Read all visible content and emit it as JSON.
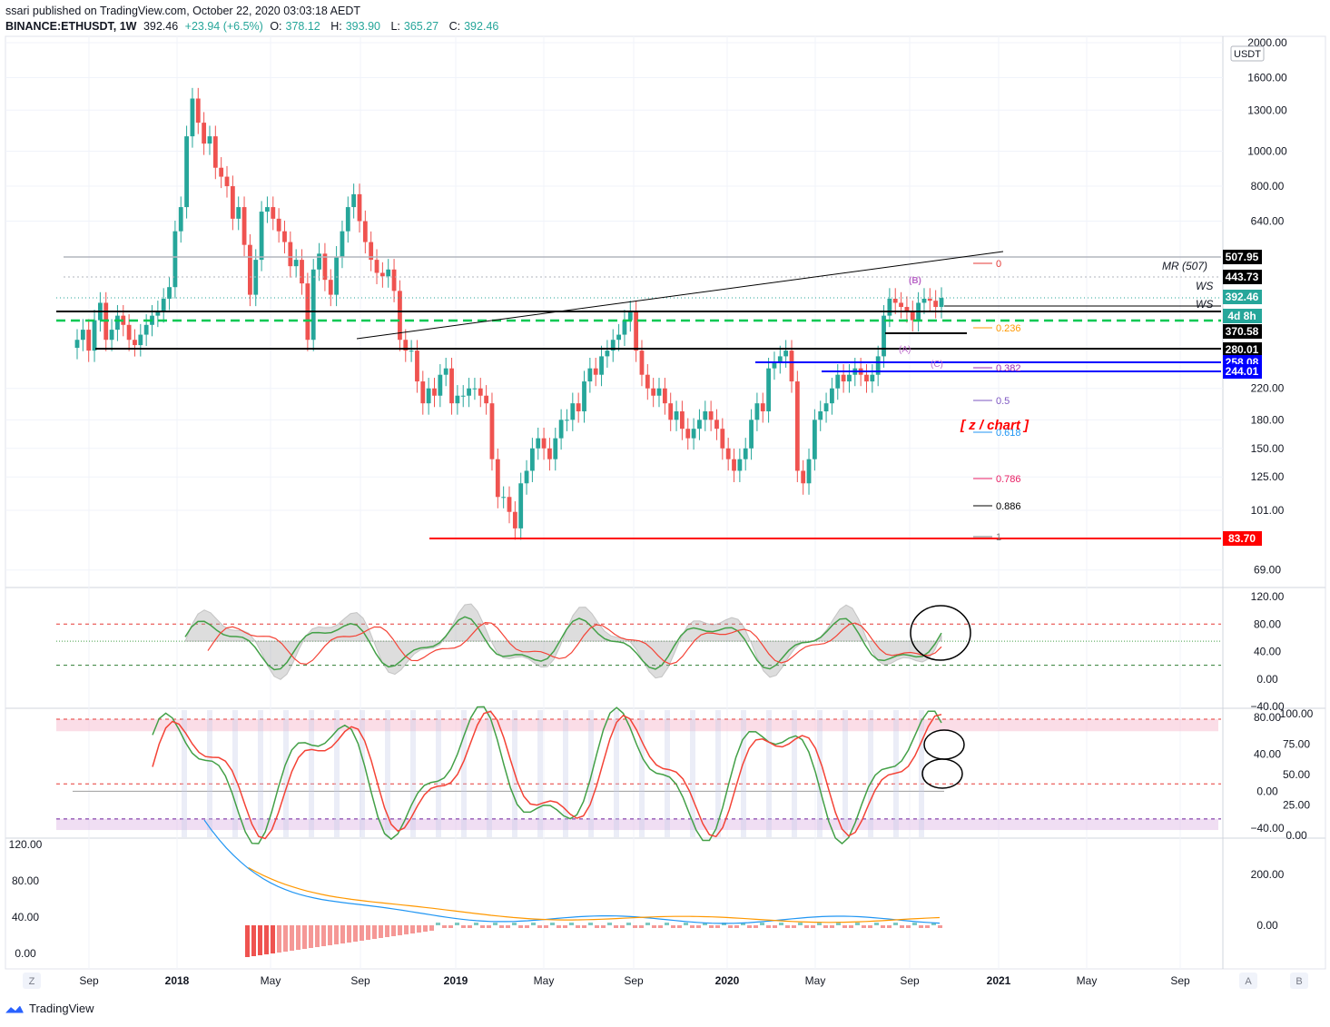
{
  "header": {
    "line1": "ssari published on TradingView.com, October 22, 2020 03:03:18 AEDT",
    "symbol": "BINANCE:ETHUSDT, 1W",
    "price": "392.46",
    "change": "+23.94 (+6.5%)",
    "o_label": "O:",
    "o": "378.12",
    "h_label": "H:",
    "h": "393.90",
    "l_label": "L:",
    "l": "365.27",
    "c_label": "C:",
    "c": "392.46"
  },
  "footer": {
    "brand": "TradingView"
  },
  "colors": {
    "up": "#26a69a",
    "down": "#ef5350",
    "red_line": "#ff0000",
    "blue_line": "#0000ff",
    "green_dash": "#00c853",
    "stoch_k": "#43a047",
    "stoch_d": "#f44336"
  },
  "chart_data": [
    {
      "type": "candlestick",
      "title": "",
      "currency_badge": "USDT",
      "scale": "log",
      "y_ticks": [
        "2000.00",
        "1600.00",
        "1300.00",
        "1000.00",
        "800.00",
        "640.00",
        "220.00",
        "180.00",
        "150.00",
        "125.00",
        "101.00",
        "69.00"
      ],
      "x_ticks": [
        "Sep",
        "2018",
        "May",
        "Sep",
        "2019",
        "May",
        "Sep",
        "2020",
        "May",
        "Sep",
        "2021",
        "May",
        "Sep"
      ],
      "price_badges": [
        {
          "label": "507.95",
          "value": 507.95,
          "color": "#000000"
        },
        {
          "label": "443.73",
          "value": 443.73,
          "color": "#000000"
        },
        {
          "label": "392.46",
          "value": 392.46,
          "color": "#26a69a"
        },
        {
          "label": "4d 8h",
          "value": 362,
          "color": "#26a69a"
        },
        {
          "label": "370.58",
          "value": 340,
          "color": "#000000"
        },
        {
          "label": "280.01",
          "value": 280.01,
          "color": "#000000"
        },
        {
          "label": "258.08",
          "value": 258.08,
          "color": "#0000ff"
        },
        {
          "label": "244.01",
          "value": 244.01,
          "color": "#0000ff"
        },
        {
          "label": "83.70",
          "value": 83.7,
          "color": "#ff0000"
        }
      ],
      "fib_levels": [
        {
          "label": "0",
          "color": "#e53935"
        },
        {
          "label": "0.236",
          "color": "#ff9800"
        },
        {
          "label": "0.382",
          "color": "#9c27b0"
        },
        {
          "label": "0.5",
          "color": "#7e57c2"
        },
        {
          "label": "0.618",
          "color": "#2196f3"
        },
        {
          "label": "0.786",
          "color": "#e91e63"
        },
        {
          "label": "0.886",
          "color": "#000000"
        },
        {
          "label": "1",
          "color": "#777777"
        }
      ],
      "annotations": [
        "MR (507)",
        "WS",
        "WS",
        "(B)",
        "(A)",
        "(C)",
        "[ z / chart ]"
      ]
    },
    {
      "type": "line",
      "name": "oscillator-1",
      "y_ticks": [
        "120.00",
        "80.00",
        "40.00",
        "0.00",
        "−40.00"
      ],
      "levels": [
        80,
        55,
        20
      ]
    },
    {
      "type": "line",
      "name": "stochastic",
      "y_ticks_left": [
        "80.00",
        "40.00",
        "0.00",
        "−40.00"
      ],
      "y_ticks_right": [
        "100.00",
        "75.00",
        "50.00",
        "25.00",
        "0.00"
      ]
    },
    {
      "type": "area",
      "name": "macd",
      "y_ticks_left": [
        "120.00",
        "80.00",
        "40.00",
        "0.00"
      ],
      "y_ticks_right": [
        "200.00",
        "0.00"
      ]
    }
  ],
  "bottom_buttons": {
    "z": "Z",
    "a": "A",
    "b": "B"
  }
}
